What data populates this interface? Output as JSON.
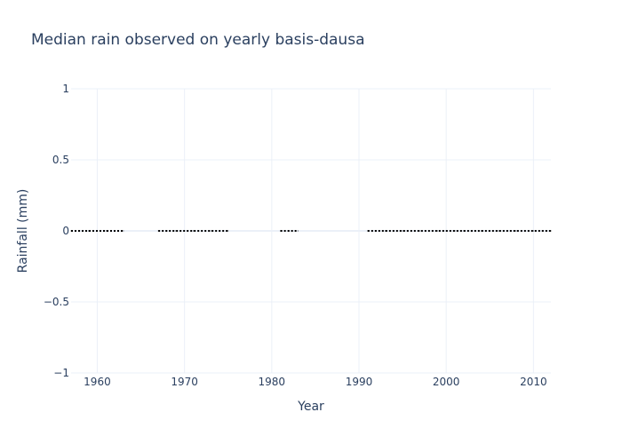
{
  "chart_data": {
    "type": "line",
    "title": "Median rain observed on yearly basis-dausa",
    "xlabel": "Year",
    "ylabel": "Rainfall (mm)",
    "xlim": [
      1957,
      2012
    ],
    "ylim": [
      -1,
      1
    ],
    "x_ticks": [
      1960,
      1970,
      1980,
      1990,
      2000,
      2010
    ],
    "y_ticks": [
      {
        "value": 1,
        "label": "1"
      },
      {
        "value": 0.5,
        "label": "0.5"
      },
      {
        "value": 0,
        "label": "0"
      },
      {
        "value": -0.5,
        "label": "−0.5"
      },
      {
        "value": -1,
        "label": "−1"
      }
    ],
    "grid": true,
    "line_style": "dotted",
    "line_color": "#000000",
    "series": [
      {
        "x": [
          1957,
          1958,
          1959,
          1960,
          1961,
          1962,
          1963,
          1967,
          1968,
          1969,
          1970,
          1971,
          1972,
          1973,
          1974,
          1975,
          1981,
          1982,
          1983,
          1991,
          1992,
          1993,
          1994,
          1995,
          1996,
          1997,
          1998,
          1999,
          2000,
          2001,
          2002,
          2003,
          2004,
          2005,
          2006,
          2007,
          2008,
          2009,
          2010,
          2011,
          2012
        ],
        "y": [
          0,
          0,
          0,
          0,
          0,
          0,
          0,
          0,
          0,
          0,
          0,
          0,
          0,
          0,
          0,
          0,
          0,
          0,
          0,
          0,
          0,
          0,
          0,
          0,
          0,
          0,
          0,
          0,
          0,
          0,
          0,
          0,
          0,
          0,
          0,
          0,
          0,
          0,
          0,
          0,
          0
        ]
      }
    ]
  }
}
